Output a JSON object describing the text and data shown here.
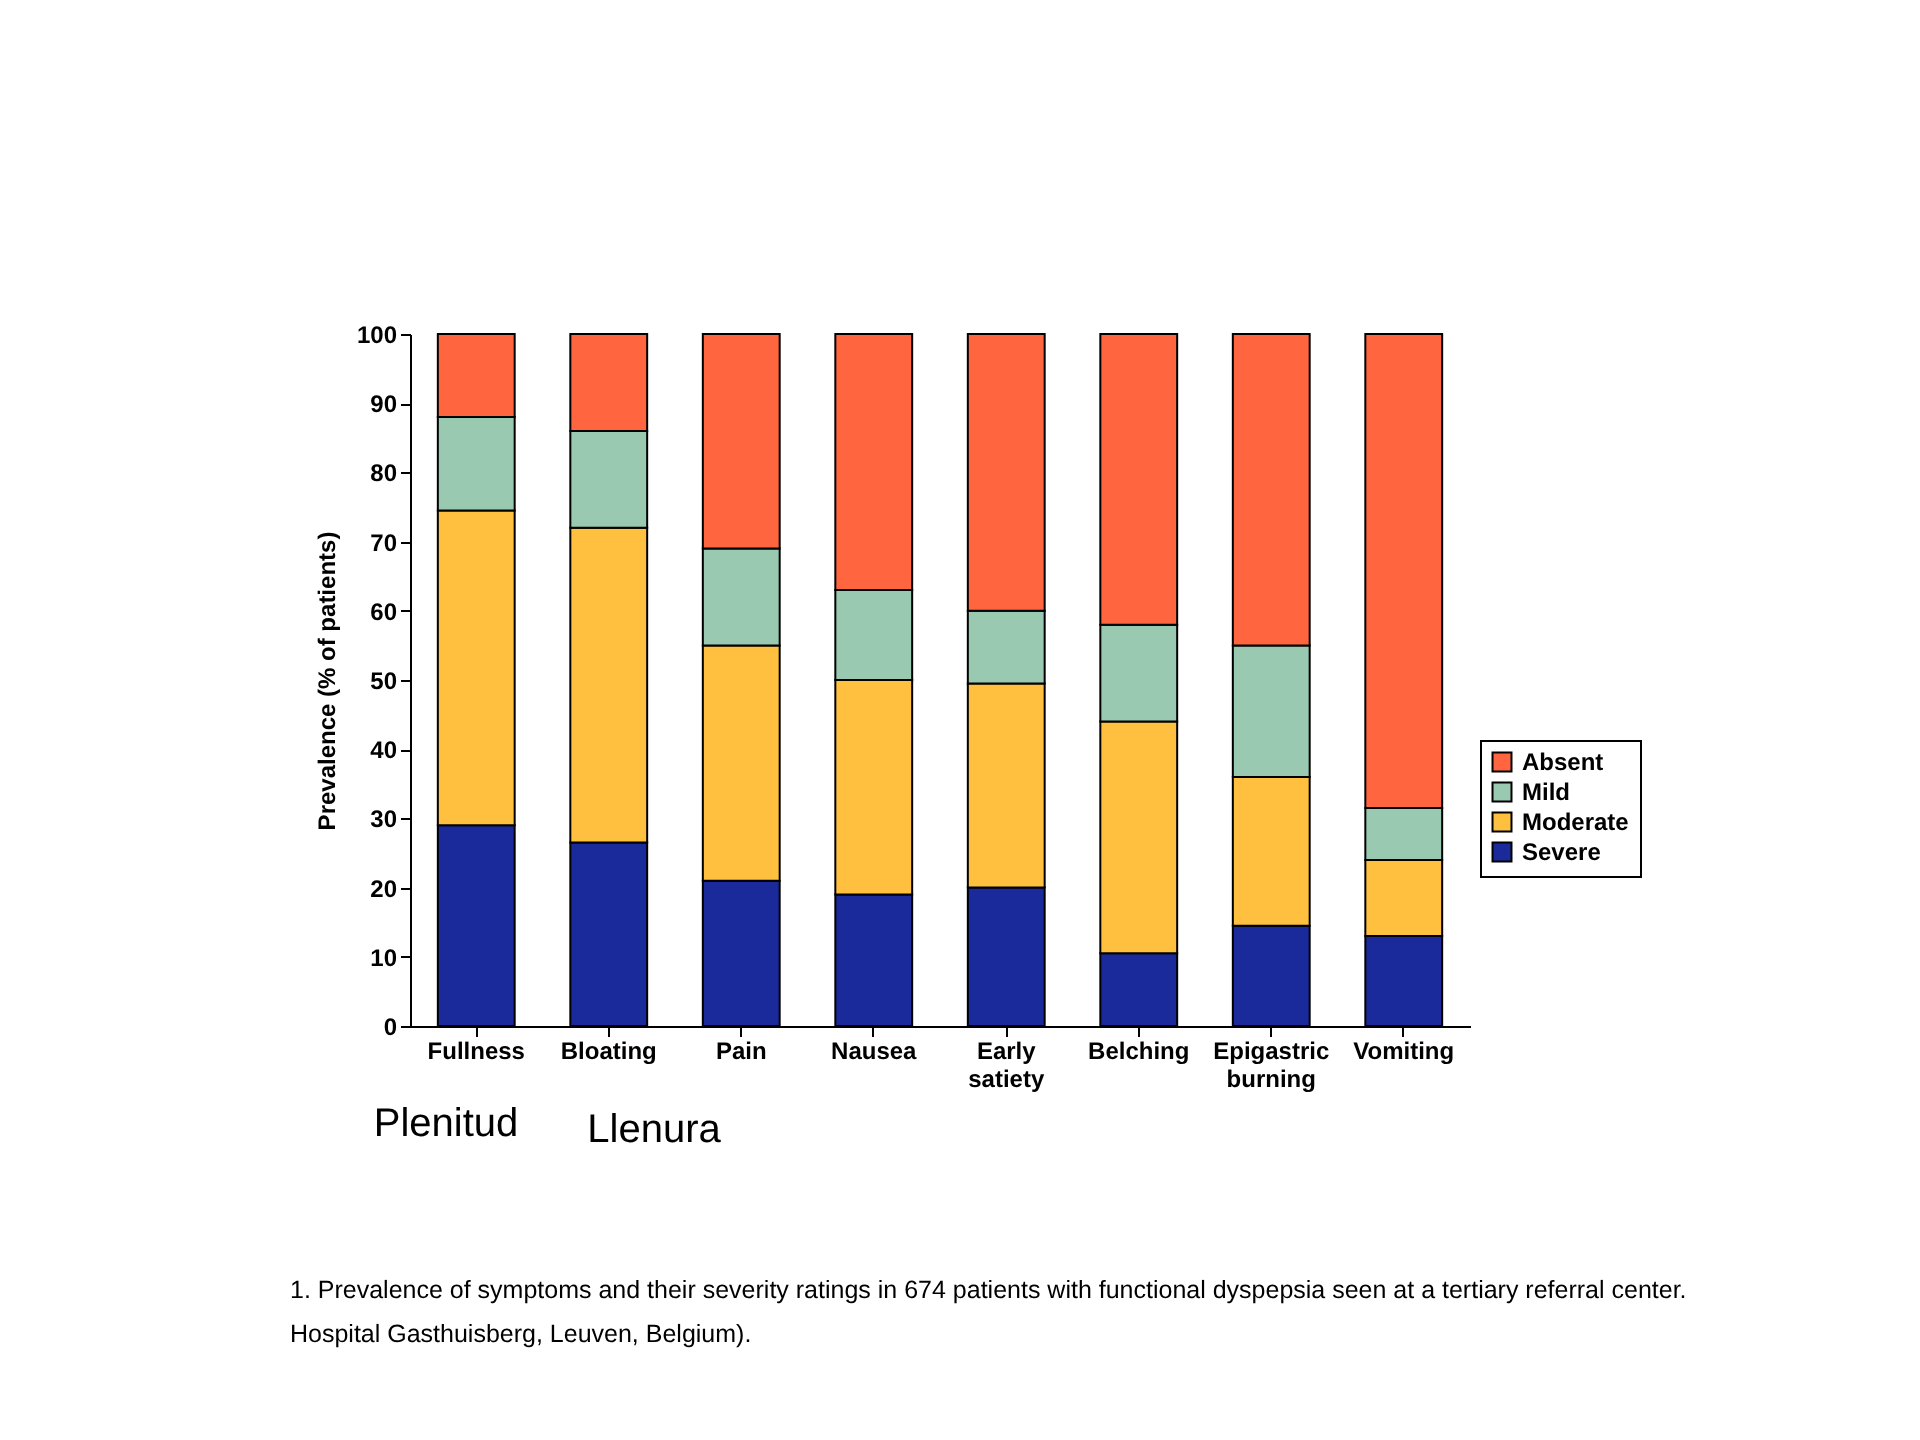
{
  "chart_data": {
    "type": "bar",
    "stacked": true,
    "ylabel": "Prevalence (% of patients)",
    "categories": [
      "Fullness",
      "Bloating",
      "Pain",
      "Nausea",
      "Early satiety",
      "Belching",
      "Epigastric burning",
      "Vomiting"
    ],
    "series": [
      {
        "name": "Severe",
        "color": "#1a2a9a",
        "values": [
          29,
          26.5,
          21,
          19,
          20,
          10.5,
          14.5,
          13
        ]
      },
      {
        "name": "Moderate",
        "color": "#ffc040",
        "values": [
          45.5,
          45.5,
          34,
          31,
          29.5,
          33.5,
          21.5,
          11
        ]
      },
      {
        "name": "Mild",
        "color": "#99c9b0",
        "values": [
          13.5,
          14,
          14,
          13,
          10.5,
          14,
          19,
          7.5
        ]
      },
      {
        "name": "Absent",
        "color": "#ff6640",
        "values": [
          12,
          14,
          31,
          37,
          40,
          42,
          45,
          68.5
        ]
      }
    ],
    "ylim": [
      0,
      100
    ],
    "yticks": [
      0,
      10,
      20,
      30,
      40,
      50,
      60,
      70,
      80,
      90,
      100
    ],
    "grid": false,
    "legend": "right",
    "annotations": [
      "Plenitud",
      "Llenura",
      "1. Prevalence of symptoms and their severity ratings in 674 patients with functional dyspepsia seen at a tertiary referral center.",
      "Hospital Gasthuisberg, Leuven, Belgium)."
    ]
  }
}
